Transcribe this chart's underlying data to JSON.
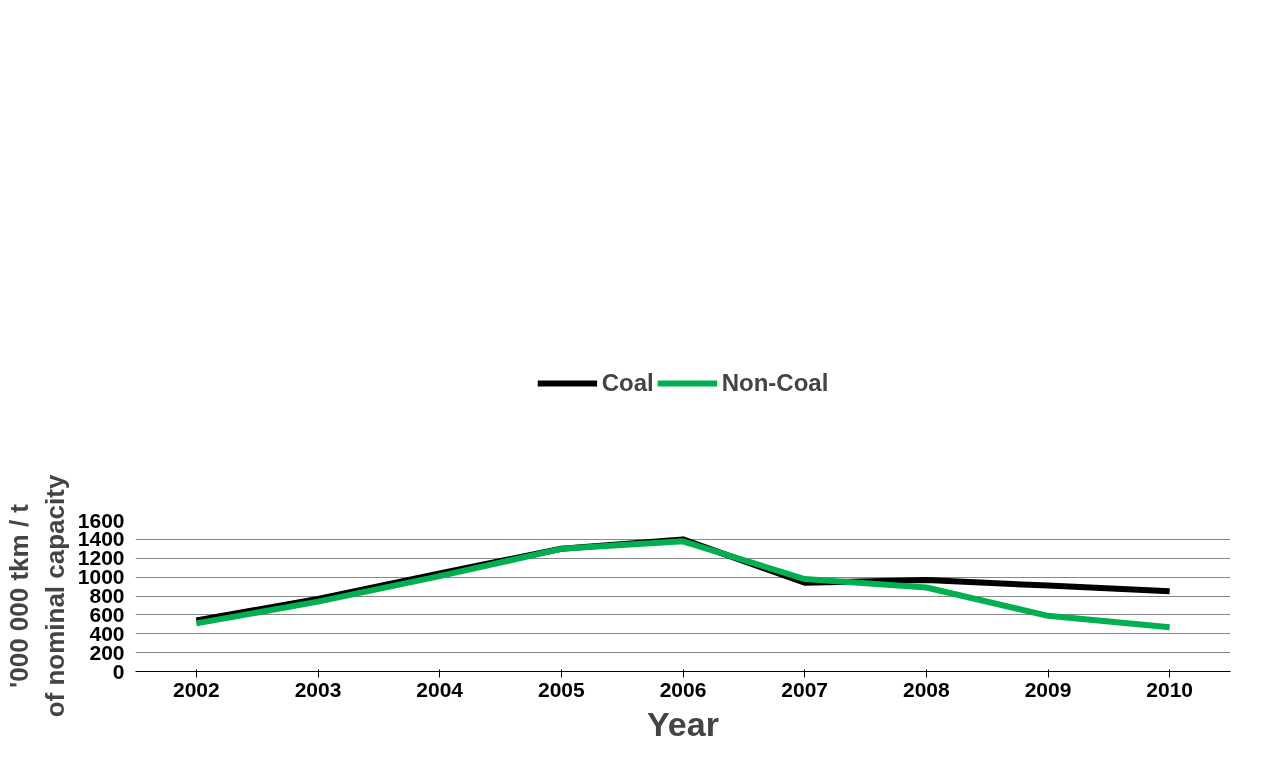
{
  "chart_data": {
    "type": "line",
    "xlabel": "Year",
    "ylabel": "'000 000 tkm / t of nominal capacity",
    "categories": [
      "2002",
      "2003",
      "2004",
      "2005",
      "2006",
      "2007",
      "2008",
      "2009",
      "2010"
    ],
    "series": [
      {
        "name": "Coal",
        "color": "#000000",
        "values": [
          540,
          770,
          1040,
          1300,
          1400,
          940,
          970,
          910,
          850
        ]
      },
      {
        "name": "Non-Coal",
        "color": "#00b050",
        "values": [
          510,
          740,
          1010,
          1300,
          1380,
          980,
          890,
          590,
          470
        ]
      }
    ],
    "ylim": [
      0,
      1600
    ],
    "yticks": [
      0,
      200,
      400,
      600,
      800,
      1000,
      1200,
      1400,
      1600
    ],
    "grid": "y",
    "legend": "top",
    "marker": "none",
    "line_style": "solid"
  }
}
